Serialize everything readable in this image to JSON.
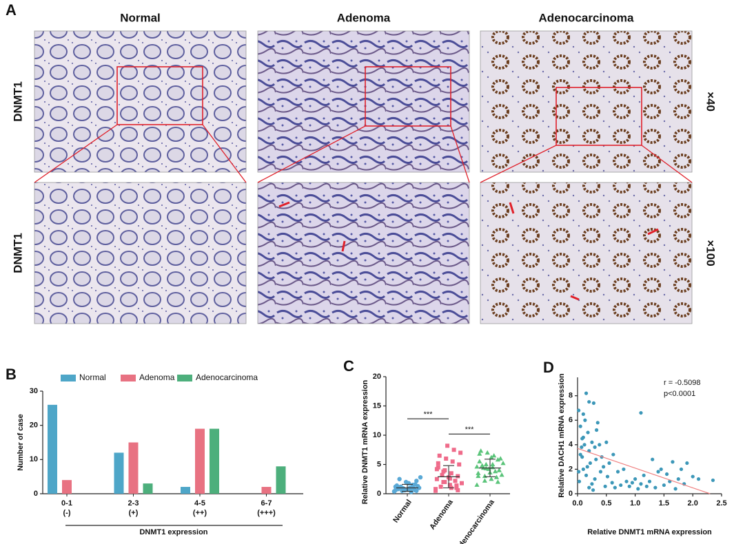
{
  "panel_a": {
    "letter": "A",
    "columns": [
      "Normal",
      "Adenoma",
      "Adenocarcinoma"
    ],
    "row_labels": [
      "DNMT1",
      "DNMT1"
    ],
    "magnifications": [
      "×40",
      "×100"
    ]
  },
  "chart_data": [
    {
      "type": "bar",
      "letter": "B",
      "ylabel": "Number of case",
      "xlabel": "DNMT1 expression",
      "categories": [
        "0-1",
        "2-3",
        "4-5",
        "6-7"
      ],
      "category_sublabels": [
        "(-)",
        "(+)",
        "(++)",
        "(+++)"
      ],
      "series": [
        {
          "name": "Normal",
          "color": "#4ea6c8",
          "values": [
            26,
            12,
            2,
            0
          ]
        },
        {
          "name": "Adenoma",
          "color": "#e87282",
          "values": [
            4,
            15,
            19,
            2
          ]
        },
        {
          "name": "Adenocarcinoma",
          "color": "#4daf7c",
          "values": [
            0,
            3,
            19,
            8
          ]
        }
      ],
      "ylim": [
        0,
        30
      ],
      "yticks": [
        0,
        10,
        20,
        30
      ],
      "legend": "top"
    },
    {
      "type": "strip",
      "letter": "C",
      "ylabel": "Relative DNMT1 mRNA expression",
      "categories": [
        "Normal",
        "Adenoma",
        "Adenocarcinoma"
      ],
      "series": [
        {
          "name": "Normal",
          "color": "#5aa9d6",
          "marker": "circle",
          "mean": 1.0,
          "sd": 0.6,
          "values": [
            0.4,
            0.6,
            0.8,
            1.0,
            1.2,
            0.5,
            0.7,
            0.9,
            1.1,
            1.3,
            0.3,
            0.6,
            0.8,
            1.0,
            1.5,
            2.0,
            2.5,
            2.8,
            0.9,
            0.7,
            1.2,
            0.4,
            1.6,
            1.8,
            0.5,
            0.6,
            2.2,
            1.0,
            0.8,
            1.4
          ]
        },
        {
          "name": "Adenoma",
          "color": "#ef6b8a",
          "marker": "square",
          "mean": 2.9,
          "sd": 1.9,
          "values": [
            0.5,
            1.0,
            1.5,
            2.0,
            2.5,
            3.0,
            3.5,
            4.0,
            4.5,
            5.0,
            5.5,
            6.0,
            6.5,
            7.0,
            7.5,
            8.2,
            1.2,
            1.8,
            2.2,
            2.8,
            3.2,
            0.8,
            1.4,
            2.6,
            3.8,
            4.2,
            0.6,
            1.0,
            2.0,
            5.2
          ]
        },
        {
          "name": "Adenocarcinoma",
          "color": "#5bc47a",
          "marker": "triangle",
          "mean": 4.4,
          "sd": 1.5,
          "values": [
            1.5,
            2.0,
            2.5,
            3.0,
            3.5,
            4.0,
            4.5,
            5.0,
            5.5,
            6.0,
            6.5,
            7.0,
            7.3,
            3.2,
            3.8,
            4.2,
            4.8,
            5.2,
            2.8,
            3.6,
            4.4,
            4.6,
            5.8,
            6.2,
            2.2,
            3.0,
            4.0,
            5.0,
            4.3,
            6.8
          ]
        }
      ],
      "significance": [
        {
          "from": 0,
          "to": 1,
          "y": 12.8,
          "label": "***"
        },
        {
          "from": 1,
          "to": 2,
          "y": 10.2,
          "label": "***"
        }
      ],
      "ylim": [
        0,
        20
      ],
      "yticks": [
        0,
        5,
        10,
        15,
        20
      ]
    },
    {
      "type": "scatter",
      "letter": "D",
      "xlabel": "Relative DNMT1 mRNA expression",
      "ylabel": "Relative DACH1 mRNA expression",
      "color": "#3c97b8",
      "x": [
        0.02,
        0.05,
        0.05,
        0.08,
        0.1,
        0.1,
        0.12,
        0.15,
        0.15,
        0.18,
        0.2,
        0.2,
        0.22,
        0.25,
        0.25,
        0.28,
        0.3,
        0.3,
        0.32,
        0.35,
        0.38,
        0.4,
        0.42,
        0.45,
        0.48,
        0.5,
        0.52,
        0.55,
        0.6,
        0.62,
        0.65,
        0.7,
        0.75,
        0.8,
        0.85,
        0.9,
        0.95,
        1.0,
        1.05,
        1.1,
        1.1,
        1.15,
        1.2,
        1.25,
        1.3,
        1.35,
        1.4,
        1.45,
        1.5,
        1.55,
        1.6,
        1.65,
        1.7,
        1.75,
        1.8,
        1.85,
        1.9,
        2.0,
        2.1,
        2.35,
        0.03,
        0.07,
        0.13,
        0.17,
        0.27,
        0.33,
        0.02,
        0.1,
        0.08,
        0.2
      ],
      "values": [
        6.8,
        5.5,
        3.2,
        4.5,
        2.0,
        6.5,
        4.0,
        8.2,
        1.5,
        5.0,
        7.5,
        3.5,
        2.5,
        4.2,
        0.8,
        7.4,
        3.8,
        1.2,
        2.8,
        5.8,
        4.0,
        1.8,
        3.0,
        2.2,
        0.6,
        4.2,
        1.4,
        2.5,
        0.9,
        3.2,
        0.5,
        1.8,
        0.7,
        2.0,
        1.0,
        0.6,
        0.9,
        1.2,
        0.4,
        6.6,
        0.8,
        1.5,
        0.6,
        1.0,
        2.8,
        0.5,
        1.8,
        2.0,
        0.7,
        1.6,
        1.0,
        2.6,
        0.4,
        1.2,
        2.0,
        0.8,
        2.5,
        1.4,
        1.2,
        1.1,
        1.0,
        3.8,
        6.0,
        2.2,
        0.3,
        5.2,
        1.8,
        4.6,
        3.0,
        0.5
      ],
      "trendline": {
        "color": "#f08080",
        "x": [
          0,
          2.3
        ],
        "values": [
          3.7,
          0
        ]
      },
      "annotations": [
        "r = -0.5098",
        "p<0.0001"
      ],
      "xlim": [
        0,
        2.5
      ],
      "xticks": [
        {
          "value": 0,
          "label": "0.0"
        },
        0.5,
        {
          "value": 1,
          "label": "1.0"
        },
        1.5,
        {
          "value": 2,
          "label": "2.0"
        },
        2.5
      ],
      "ylim": [
        0,
        9.5
      ],
      "yticks": [
        0,
        2,
        4,
        6,
        8
      ]
    }
  ]
}
